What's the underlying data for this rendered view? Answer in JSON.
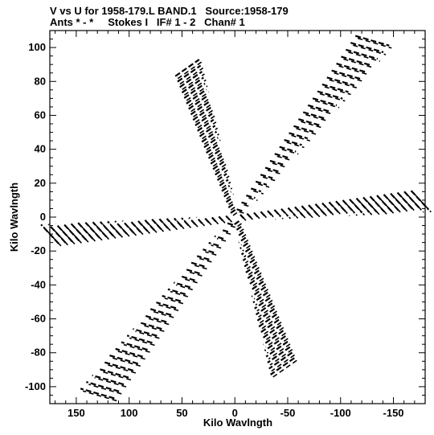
{
  "header": {
    "title_line1": "V vs U for 1958-179.L BAND.1   Source:1958-179",
    "title_line2": "Ants * - *     Stokes I   IF# 1 - 2   Chan# 1"
  },
  "chart_data": {
    "type": "scatter",
    "xlabel": "Kilo Wavlngth",
    "ylabel": "Kilo Wavlngth",
    "xlim": [
      175,
      -180
    ],
    "ylim": [
      -110,
      110
    ],
    "x_reversed": true,
    "x_ticks": [
      150,
      100,
      50,
      0,
      -50,
      -100,
      -150
    ],
    "y_ticks": [
      100,
      80,
      60,
      40,
      20,
      0,
      -20,
      -40,
      -60,
      -80,
      -100
    ],
    "grid": false,
    "mark_style": "short dashed track segments (uv coverage)",
    "series": [
      {
        "arms": [
          {
            "from": [
              0,
              0
            ],
            "to": [
              -130,
              104
            ]
          },
          {
            "from": [
              0,
              0
            ],
            "to": [
              130,
              -104
            ]
          },
          {
            "from": [
              0,
              0
            ],
            "to": [
              -175,
              10
            ]
          },
          {
            "from": [
              0,
              0
            ],
            "to": [
              175,
              -10
            ]
          },
          {
            "from": [
              0,
              0
            ],
            "to": [
              45,
              88
            ]
          },
          {
            "from": [
              0,
              0
            ],
            "to": [
              -45,
              -88
            ]
          }
        ]
      }
    ]
  }
}
